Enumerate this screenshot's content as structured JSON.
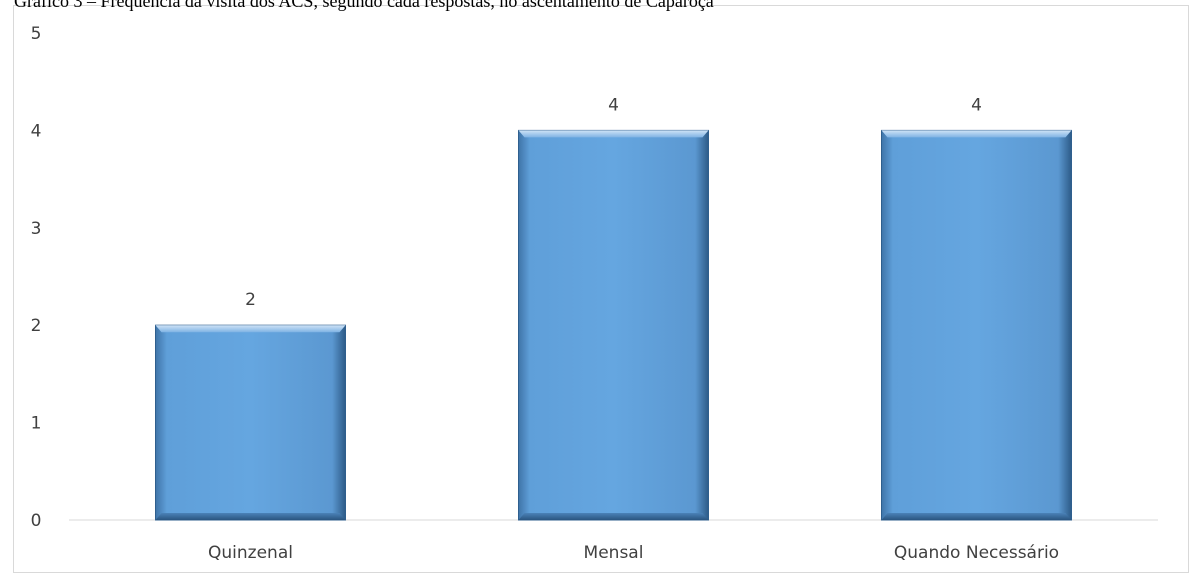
{
  "chart_data": {
    "type": "bar",
    "title": "Gráfico 3 – Frequência da visita dos ACS, segundo cada respostas, no ascentamento de Caparoça",
    "categories": [
      "Quinzenal",
      "Mensal",
      "Quando Necessário"
    ],
    "values": [
      2,
      4,
      4
    ],
    "data_labels": [
      "2",
      "4",
      "4"
    ],
    "y_ticks": [
      "0",
      "1",
      "2",
      "3",
      "4",
      "5"
    ],
    "ylim": [
      0,
      5
    ],
    "xlabel": "",
    "ylabel": "",
    "grid": false,
    "legend": "none",
    "colors": {
      "bar_fill": "#63a3dd",
      "bar_edge_dark": "#2e5e8c",
      "bar_highlight": "#bcd8f2",
      "axis": "#d9d9d9",
      "tick_text": "#404040"
    }
  }
}
